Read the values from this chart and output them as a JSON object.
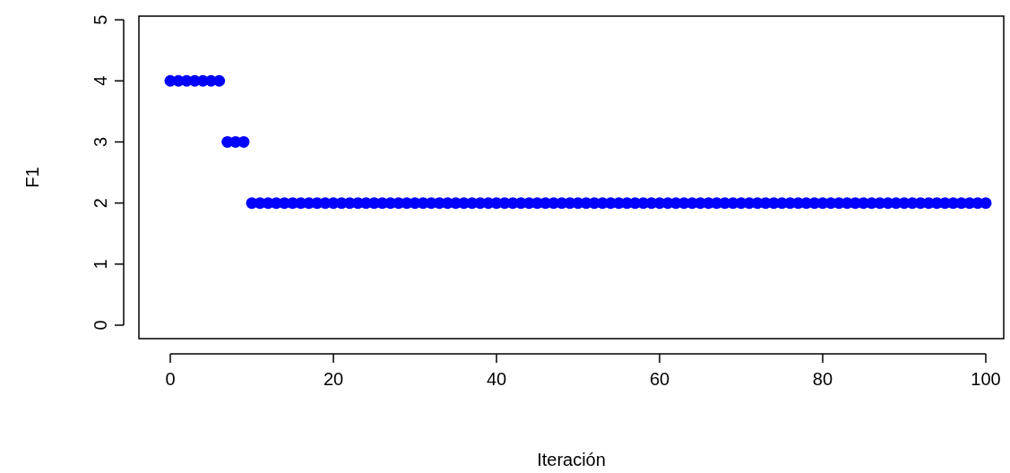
{
  "chart_data": {
    "type": "scatter",
    "xlabel": "Iteración",
    "ylabel": "F1",
    "x": [
      0,
      1,
      2,
      3,
      4,
      5,
      6,
      7,
      8,
      9,
      10,
      11,
      12,
      13,
      14,
      15,
      16,
      17,
      18,
      19,
      20,
      21,
      22,
      23,
      24,
      25,
      26,
      27,
      28,
      29,
      30,
      31,
      32,
      33,
      34,
      35,
      36,
      37,
      38,
      39,
      40,
      41,
      42,
      43,
      44,
      45,
      46,
      47,
      48,
      49,
      50,
      51,
      52,
      53,
      54,
      55,
      56,
      57,
      58,
      59,
      60,
      61,
      62,
      63,
      64,
      65,
      66,
      67,
      68,
      69,
      70,
      71,
      72,
      73,
      74,
      75,
      76,
      77,
      78,
      79,
      80,
      81,
      82,
      83,
      84,
      85,
      86,
      87,
      88,
      89,
      90,
      91,
      92,
      93,
      94,
      95,
      96,
      97,
      98,
      99,
      100
    ],
    "series": [
      {
        "color": "#0000ff",
        "values": [
          4,
          4,
          4,
          4,
          4,
          4,
          4,
          3,
          3,
          3,
          2,
          2,
          2,
          2,
          2,
          2,
          2,
          2,
          2,
          2,
          2,
          2,
          2,
          2,
          2,
          2,
          2,
          2,
          2,
          2,
          2,
          2,
          2,
          2,
          2,
          2,
          2,
          2,
          2,
          2,
          2,
          2,
          2,
          2,
          2,
          2,
          2,
          2,
          2,
          2,
          2,
          2,
          2,
          2,
          2,
          2,
          2,
          2,
          2,
          2,
          2,
          2,
          2,
          2,
          2,
          2,
          2,
          2,
          2,
          2,
          2,
          2,
          2,
          2,
          2,
          2,
          2,
          2,
          2,
          2,
          2,
          2,
          2,
          2,
          2,
          2,
          2,
          2,
          2,
          2,
          2,
          2,
          2,
          2,
          2,
          2,
          2,
          2,
          2,
          2,
          2
        ]
      }
    ],
    "xlim": [
      -3.85,
      102.2
    ],
    "ylim": [
      -0.22,
      5.06
    ],
    "xticks": [
      0,
      20,
      40,
      60,
      80,
      100
    ],
    "yticks": [
      0,
      1,
      2,
      3,
      4,
      5
    ],
    "marker": "circle",
    "grid": false
  }
}
